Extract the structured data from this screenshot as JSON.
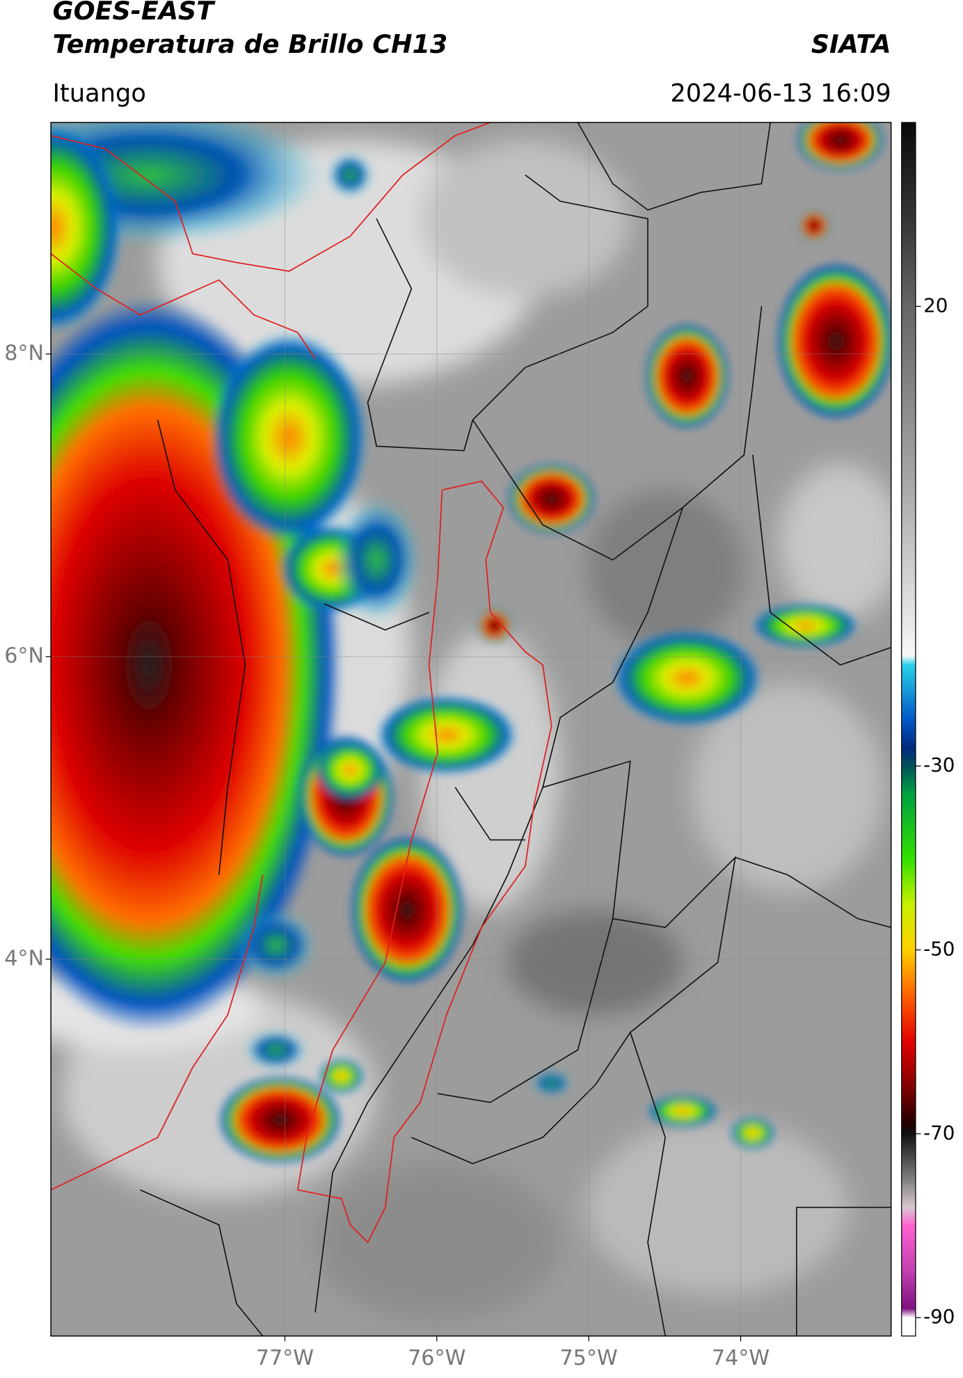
{
  "header": {
    "title": "GOES-EAST",
    "subtitle": "Temperatura de Brillo CH13",
    "source": "SIATA",
    "location": "Ituango",
    "datetime": "2024-06-13 16:09"
  },
  "map": {
    "lonlim": [
      -78.54,
      -73.01
    ],
    "latlim": [
      1.51,
      9.53
    ],
    "grid": true,
    "lonticks": [
      {
        "value": -77,
        "label": "77°W"
      },
      {
        "value": -76,
        "label": "76°W"
      },
      {
        "value": -75,
        "label": "75°W"
      },
      {
        "value": -74,
        "label": "74°W"
      }
    ],
    "latticks": [
      {
        "value": 8,
        "label": "8°N"
      },
      {
        "value": 6,
        "label": "6°N"
      },
      {
        "value": 4,
        "label": "4°N"
      }
    ]
  },
  "colorbar": {
    "lim": [
      -92,
      40
    ],
    "ticks": [
      20,
      -30,
      -50,
      -70,
      -90
    ],
    "colors": [
      {
        "value": 40,
        "color": "#0a0a0a"
      },
      {
        "value": 30,
        "color": "#333333"
      },
      {
        "value": 20,
        "color": "#666666"
      },
      {
        "value": 0,
        "color": "#aaaaaa"
      },
      {
        "value": -18,
        "color": "#f7f7f7"
      },
      {
        "value": -19,
        "color": "#2bd0e8"
      },
      {
        "value": -25,
        "color": "#0058c8"
      },
      {
        "value": -28,
        "color": "#002a80"
      },
      {
        "value": -30,
        "color": "#00505a"
      },
      {
        "value": -33,
        "color": "#00a040"
      },
      {
        "value": -40,
        "color": "#30e000"
      },
      {
        "value": -45,
        "color": "#c8f000"
      },
      {
        "value": -50,
        "color": "#ffd000"
      },
      {
        "value": -55,
        "color": "#ff6000"
      },
      {
        "value": -60,
        "color": "#e00000"
      },
      {
        "value": -65,
        "color": "#800000"
      },
      {
        "value": -69,
        "color": "#200000"
      },
      {
        "value": -70,
        "color": "#101010"
      },
      {
        "value": -75,
        "color": "#808080"
      },
      {
        "value": -78,
        "color": "#d8c8d0"
      },
      {
        "value": -80,
        "color": "#ff60d0"
      },
      {
        "value": -85,
        "color": "#c040b0"
      },
      {
        "value": -89,
        "color": "#801080"
      },
      {
        "value": -90,
        "color": "#ffffff"
      },
      {
        "value": -92,
        "color": "#ffffff"
      }
    ]
  }
}
